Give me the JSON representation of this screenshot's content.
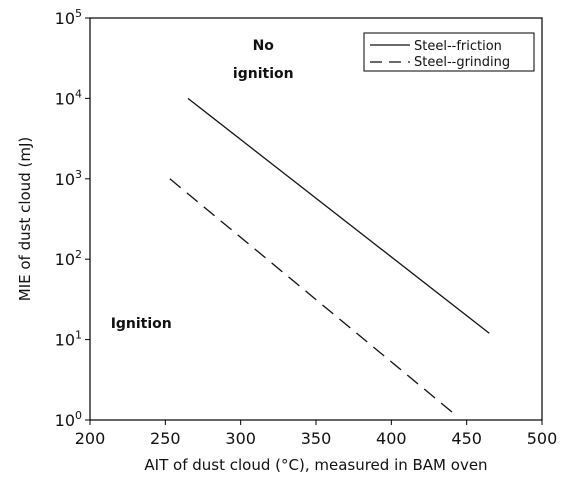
{
  "chart_data": {
    "type": "line",
    "xlabel": "AIT of dust cloud (°C), measured in BAM oven",
    "ylabel": "MIE of dust cloud (mJ)",
    "xlim": [
      200,
      500
    ],
    "ylim": [
      1,
      100000
    ],
    "y_scale": "log",
    "x_ticks": [
      200,
      250,
      300,
      350,
      400,
      450,
      500
    ],
    "x_tick_labels": [
      "200",
      "250",
      "300",
      "350",
      "400",
      "450",
      "500"
    ],
    "y_ticks": [
      1,
      10,
      100,
      1000,
      10000,
      100000
    ],
    "y_tick_labels": [
      {
        "base": "10",
        "exp": "0"
      },
      {
        "base": "10",
        "exp": "1"
      },
      {
        "base": "10",
        "exp": "2"
      },
      {
        "base": "10",
        "exp": "3"
      },
      {
        "base": "10",
        "exp": "4"
      },
      {
        "base": "10",
        "exp": "5"
      }
    ],
    "grid": false,
    "legend_position": "top-right",
    "series": [
      {
        "name": "Steel--friction",
        "style": "solid",
        "color": "#111111",
        "x": [
          265,
          465
        ],
        "y": [
          10000,
          12
        ]
      },
      {
        "name": "Steel--grinding",
        "style": "dashed",
        "color": "#111111",
        "x": [
          253,
          444
        ],
        "y": [
          1000,
          1.1
        ]
      }
    ],
    "annotations": [
      {
        "text": "No",
        "x": 315,
        "y": 40000
      },
      {
        "text": "ignition",
        "x": 315,
        "y": 18000
      },
      {
        "text": "Ignition",
        "x": 234,
        "y": 14
      }
    ]
  }
}
